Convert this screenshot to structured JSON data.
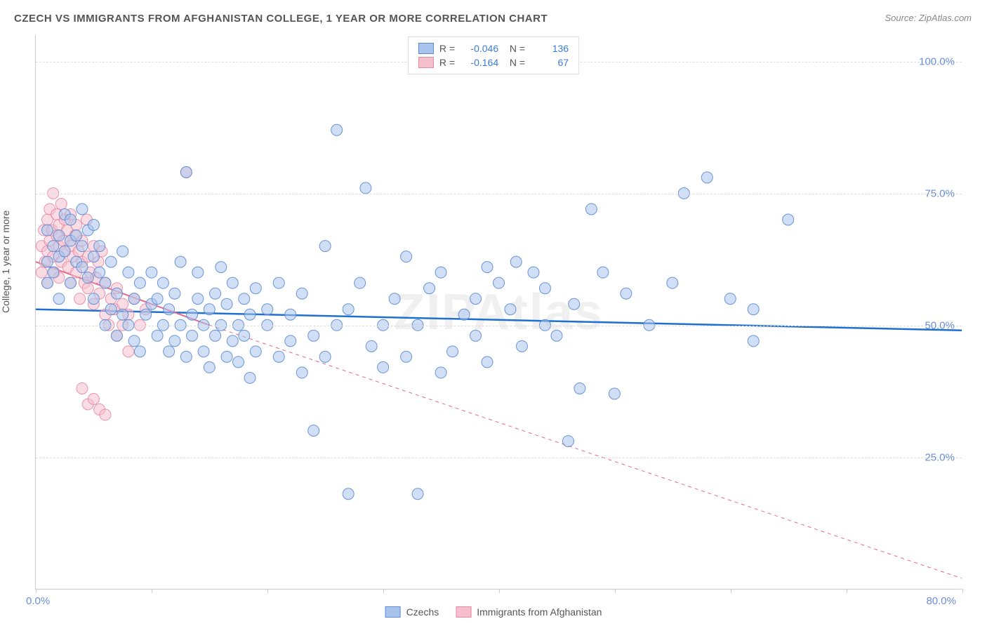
{
  "title": "CZECH VS IMMIGRANTS FROM AFGHANISTAN COLLEGE, 1 YEAR OR MORE CORRELATION CHART",
  "source": "Source: ZipAtlas.com",
  "watermark": "ZIPAtlas",
  "ylabel": "College, 1 year or more",
  "chart": {
    "type": "scatter",
    "xlim": [
      0,
      80
    ],
    "ylim": [
      0,
      105
    ],
    "xtick_positions_pct": [
      0,
      12.5,
      25,
      37.5,
      50,
      62.5,
      75,
      87.5,
      100
    ],
    "xtick_label_start": "0.0%",
    "xtick_label_end": "80.0%",
    "ytick_grid": [
      {
        "value": 25,
        "label": "25.0%"
      },
      {
        "value": 50,
        "label": "50.0%"
      },
      {
        "value": 75,
        "label": "75.0%"
      },
      {
        "value": 100,
        "label": "100.0%"
      }
    ],
    "background_color": "#ffffff",
    "grid_color": "#dddddd",
    "axis_color": "#cccccc",
    "label_color": "#6b8fd6",
    "marker_radius": 8,
    "marker_opacity": 0.55,
    "marker_stroke_opacity": 0.9,
    "series": [
      {
        "name": "Czechs",
        "fill": "#a9c4ec",
        "stroke": "#5b8bd0",
        "trend_color": "#1f6fd0",
        "trend_width": 2.5,
        "trend_dash": "none",
        "trend": {
          "x1": 0,
          "y1": 53,
          "x2": 80,
          "y2": 49
        },
        "trend_extrap": null,
        "R": "-0.046",
        "N": "136",
        "points": [
          [
            1,
            62
          ],
          [
            1,
            58
          ],
          [
            1,
            68
          ],
          [
            1.5,
            60
          ],
          [
            1.5,
            65
          ],
          [
            2,
            63
          ],
          [
            2,
            67
          ],
          [
            2,
            55
          ],
          [
            2.5,
            71
          ],
          [
            2.5,
            64
          ],
          [
            3,
            66
          ],
          [
            3,
            70
          ],
          [
            3,
            58
          ],
          [
            3.5,
            62
          ],
          [
            3.5,
            67
          ],
          [
            4,
            65
          ],
          [
            4,
            61
          ],
          [
            4,
            72
          ],
          [
            4.5,
            59
          ],
          [
            4.5,
            68
          ],
          [
            5,
            63
          ],
          [
            5,
            55
          ],
          [
            5,
            69
          ],
          [
            5.5,
            60
          ],
          [
            5.5,
            65
          ],
          [
            6,
            50
          ],
          [
            6,
            58
          ],
          [
            6.5,
            62
          ],
          [
            6.5,
            53
          ],
          [
            7,
            56
          ],
          [
            7,
            48
          ],
          [
            7.5,
            52
          ],
          [
            7.5,
            64
          ],
          [
            8,
            60
          ],
          [
            8,
            50
          ],
          [
            8.5,
            47
          ],
          [
            8.5,
            55
          ],
          [
            9,
            58
          ],
          [
            9,
            45
          ],
          [
            9.5,
            52
          ],
          [
            10,
            54
          ],
          [
            10,
            60
          ],
          [
            10.5,
            48
          ],
          [
            10.5,
            55
          ],
          [
            11,
            50
          ],
          [
            11,
            58
          ],
          [
            11.5,
            45
          ],
          [
            11.5,
            53
          ],
          [
            12,
            47
          ],
          [
            12,
            56
          ],
          [
            12.5,
            50
          ],
          [
            12.5,
            62
          ],
          [
            13,
            44
          ],
          [
            13,
            79
          ],
          [
            13.5,
            52
          ],
          [
            13.5,
            48
          ],
          [
            14,
            55
          ],
          [
            14,
            60
          ],
          [
            14.5,
            50
          ],
          [
            14.5,
            45
          ],
          [
            15,
            53
          ],
          [
            15,
            42
          ],
          [
            15.5,
            56
          ],
          [
            15.5,
            48
          ],
          [
            16,
            61
          ],
          [
            16,
            50
          ],
          [
            16.5,
            44
          ],
          [
            16.5,
            54
          ],
          [
            17,
            47
          ],
          [
            17,
            58
          ],
          [
            17.5,
            50
          ],
          [
            17.5,
            43
          ],
          [
            18,
            55
          ],
          [
            18,
            48
          ],
          [
            18.5,
            52
          ],
          [
            18.5,
            40
          ],
          [
            19,
            45
          ],
          [
            19,
            57
          ],
          [
            20,
            50
          ],
          [
            20,
            53
          ],
          [
            21,
            44
          ],
          [
            21,
            58
          ],
          [
            22,
            47
          ],
          [
            22,
            52
          ],
          [
            23,
            41
          ],
          [
            23,
            56
          ],
          [
            24,
            48
          ],
          [
            24,
            30
          ],
          [
            25,
            65
          ],
          [
            25,
            44
          ],
          [
            26,
            87
          ],
          [
            26,
            50
          ],
          [
            27,
            53
          ],
          [
            27,
            18
          ],
          [
            28,
            58
          ],
          [
            28.5,
            76
          ],
          [
            29,
            46
          ],
          [
            30,
            50
          ],
          [
            30,
            42
          ],
          [
            31,
            55
          ],
          [
            32,
            44
          ],
          [
            32,
            63
          ],
          [
            33,
            50
          ],
          [
            33,
            18
          ],
          [
            34,
            57
          ],
          [
            35,
            60
          ],
          [
            35,
            41
          ],
          [
            36,
            45
          ],
          [
            37,
            52
          ],
          [
            38,
            48
          ],
          [
            38,
            55
          ],
          [
            39,
            43
          ],
          [
            39,
            61
          ],
          [
            40,
            58
          ],
          [
            41,
            53
          ],
          [
            41.5,
            62
          ],
          [
            42,
            46
          ],
          [
            43,
            60
          ],
          [
            44,
            50
          ],
          [
            44,
            57
          ],
          [
            45,
            48
          ],
          [
            46,
            28
          ],
          [
            46.5,
            54
          ],
          [
            47,
            38
          ],
          [
            48,
            72
          ],
          [
            49,
            60
          ],
          [
            50,
            37
          ],
          [
            51,
            56
          ],
          [
            53,
            50
          ],
          [
            55,
            58
          ],
          [
            56,
            75
          ],
          [
            58,
            78
          ],
          [
            62,
            47
          ],
          [
            62,
            53
          ],
          [
            65,
            70
          ],
          [
            60,
            55
          ]
        ]
      },
      {
        "name": "Immigrants from Afghanistan",
        "fill": "#f6bfcd",
        "stroke": "#e68aa3",
        "trend_color": "#e26a8d",
        "trend_width": 2,
        "trend_dash": "none",
        "trend": {
          "x1": 0,
          "y1": 62,
          "x2": 15,
          "y2": 50
        },
        "trend_extrap": {
          "x1": 15,
          "y1": 50,
          "x2": 80,
          "y2": 2,
          "dash": "5,5",
          "width": 1
        },
        "R": "-0.164",
        "N": "67",
        "points": [
          [
            0.5,
            60
          ],
          [
            0.5,
            65
          ],
          [
            0.7,
            68
          ],
          [
            0.8,
            62
          ],
          [
            1,
            70
          ],
          [
            1,
            64
          ],
          [
            1,
            58
          ],
          [
            1.2,
            72
          ],
          [
            1.2,
            66
          ],
          [
            1.4,
            68
          ],
          [
            1.5,
            63
          ],
          [
            1.5,
            75
          ],
          [
            1.6,
            60
          ],
          [
            1.8,
            67
          ],
          [
            1.8,
            71
          ],
          [
            2,
            65
          ],
          [
            2,
            59
          ],
          [
            2,
            69
          ],
          [
            2.2,
            73
          ],
          [
            2.2,
            62
          ],
          [
            2.4,
            66
          ],
          [
            2.5,
            64
          ],
          [
            2.5,
            70
          ],
          [
            2.7,
            68
          ],
          [
            2.8,
            61
          ],
          [
            3,
            65
          ],
          [
            3,
            71
          ],
          [
            3,
            58
          ],
          [
            3.2,
            63
          ],
          [
            3.4,
            67
          ],
          [
            3.5,
            60
          ],
          [
            3.5,
            69
          ],
          [
            3.7,
            64
          ],
          [
            3.8,
            55
          ],
          [
            4,
            62
          ],
          [
            4,
            66
          ],
          [
            4.2,
            58
          ],
          [
            4.4,
            70
          ],
          [
            4.5,
            63
          ],
          [
            4.5,
            57
          ],
          [
            4.7,
            60
          ],
          [
            5,
            65
          ],
          [
            5,
            54
          ],
          [
            5.2,
            59
          ],
          [
            5.4,
            62
          ],
          [
            5.5,
            56
          ],
          [
            5.7,
            64
          ],
          [
            6,
            52
          ],
          [
            6,
            58
          ],
          [
            6.3,
            50
          ],
          [
            6.5,
            55
          ],
          [
            6.8,
            53
          ],
          [
            7,
            57
          ],
          [
            7,
            48
          ],
          [
            7.5,
            54
          ],
          [
            7.5,
            50
          ],
          [
            8,
            52
          ],
          [
            8,
            45
          ],
          [
            8.5,
            55
          ],
          [
            9,
            50
          ],
          [
            9.5,
            53
          ],
          [
            4,
            38
          ],
          [
            4.5,
            35
          ],
          [
            5,
            36
          ],
          [
            5.5,
            34
          ],
          [
            6,
            33
          ],
          [
            13,
            79
          ]
        ]
      }
    ]
  }
}
